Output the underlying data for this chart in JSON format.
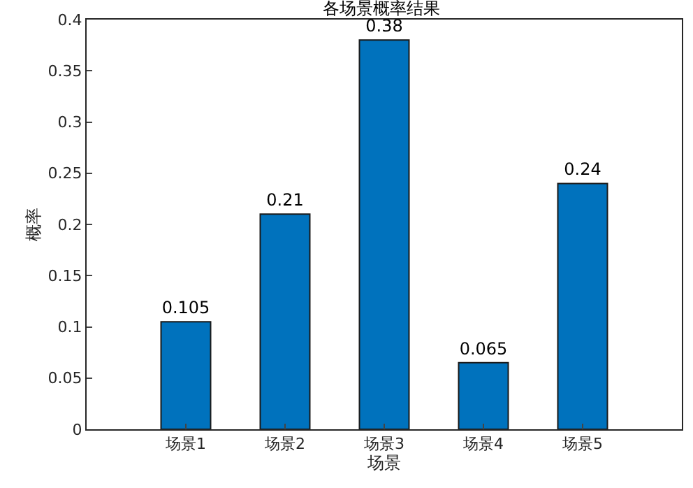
{
  "chart_data": {
    "type": "bar",
    "title": "各场景概率结果",
    "xlabel": "场景",
    "ylabel": "概率",
    "categories": [
      "场景1",
      "场景2",
      "场景3",
      "场景4",
      "场景5"
    ],
    "values": [
      0.105,
      0.21,
      0.38,
      0.065,
      0.24
    ],
    "color": "#0072bd",
    "ylim": [
      0,
      0.4
    ],
    "yticks": [
      0,
      0.05,
      0.1,
      0.15,
      0.2,
      0.25,
      0.3,
      0.35,
      0.4
    ],
    "data_labels": true
  }
}
